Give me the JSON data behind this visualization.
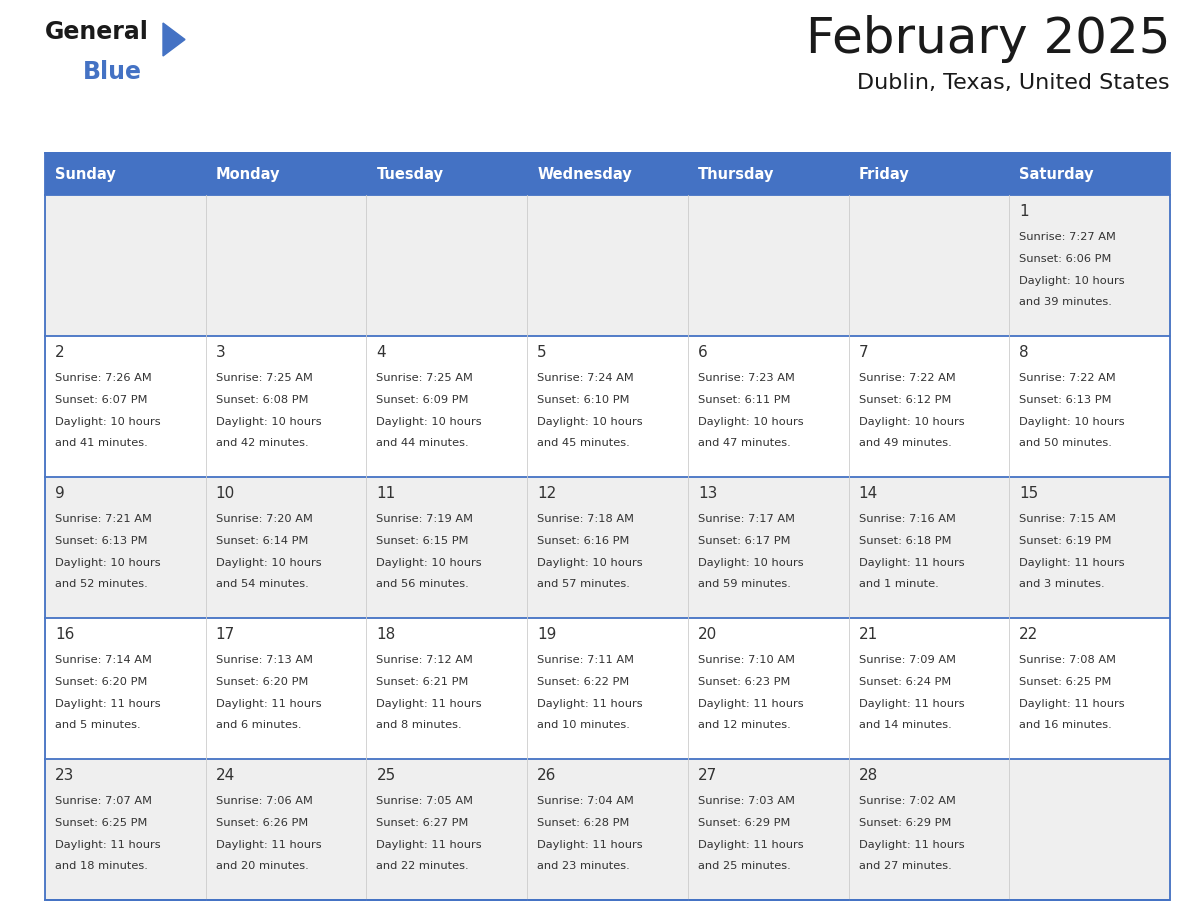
{
  "title": "February 2025",
  "subtitle": "Dublin, Texas, United States",
  "header_bg": "#4472C4",
  "header_text_color": "#FFFFFF",
  "day_names": [
    "Sunday",
    "Monday",
    "Tuesday",
    "Wednesday",
    "Thursday",
    "Friday",
    "Saturday"
  ],
  "row_bg_odd": "#EFEFEF",
  "row_bg_even": "#FFFFFF",
  "cell_text_color": "#333333",
  "border_color": "#4472C4",
  "separator_color": "#4472C4",
  "days": [
    {
      "date": 1,
      "col": 6,
      "row": 0,
      "sunrise": "7:27 AM",
      "sunset": "6:06 PM",
      "daylight_line1": "Daylight: 10 hours",
      "daylight_line2": "and 39 minutes."
    },
    {
      "date": 2,
      "col": 0,
      "row": 1,
      "sunrise": "7:26 AM",
      "sunset": "6:07 PM",
      "daylight_line1": "Daylight: 10 hours",
      "daylight_line2": "and 41 minutes."
    },
    {
      "date": 3,
      "col": 1,
      "row": 1,
      "sunrise": "7:25 AM",
      "sunset": "6:08 PM",
      "daylight_line1": "Daylight: 10 hours",
      "daylight_line2": "and 42 minutes."
    },
    {
      "date": 4,
      "col": 2,
      "row": 1,
      "sunrise": "7:25 AM",
      "sunset": "6:09 PM",
      "daylight_line1": "Daylight: 10 hours",
      "daylight_line2": "and 44 minutes."
    },
    {
      "date": 5,
      "col": 3,
      "row": 1,
      "sunrise": "7:24 AM",
      "sunset": "6:10 PM",
      "daylight_line1": "Daylight: 10 hours",
      "daylight_line2": "and 45 minutes."
    },
    {
      "date": 6,
      "col": 4,
      "row": 1,
      "sunrise": "7:23 AM",
      "sunset": "6:11 PM",
      "daylight_line1": "Daylight: 10 hours",
      "daylight_line2": "and 47 minutes."
    },
    {
      "date": 7,
      "col": 5,
      "row": 1,
      "sunrise": "7:22 AM",
      "sunset": "6:12 PM",
      "daylight_line1": "Daylight: 10 hours",
      "daylight_line2": "and 49 minutes."
    },
    {
      "date": 8,
      "col": 6,
      "row": 1,
      "sunrise": "7:22 AM",
      "sunset": "6:13 PM",
      "daylight_line1": "Daylight: 10 hours",
      "daylight_line2": "and 50 minutes."
    },
    {
      "date": 9,
      "col": 0,
      "row": 2,
      "sunrise": "7:21 AM",
      "sunset": "6:13 PM",
      "daylight_line1": "Daylight: 10 hours",
      "daylight_line2": "and 52 minutes."
    },
    {
      "date": 10,
      "col": 1,
      "row": 2,
      "sunrise": "7:20 AM",
      "sunset": "6:14 PM",
      "daylight_line1": "Daylight: 10 hours",
      "daylight_line2": "and 54 minutes."
    },
    {
      "date": 11,
      "col": 2,
      "row": 2,
      "sunrise": "7:19 AM",
      "sunset": "6:15 PM",
      "daylight_line1": "Daylight: 10 hours",
      "daylight_line2": "and 56 minutes."
    },
    {
      "date": 12,
      "col": 3,
      "row": 2,
      "sunrise": "7:18 AM",
      "sunset": "6:16 PM",
      "daylight_line1": "Daylight: 10 hours",
      "daylight_line2": "and 57 minutes."
    },
    {
      "date": 13,
      "col": 4,
      "row": 2,
      "sunrise": "7:17 AM",
      "sunset": "6:17 PM",
      "daylight_line1": "Daylight: 10 hours",
      "daylight_line2": "and 59 minutes."
    },
    {
      "date": 14,
      "col": 5,
      "row": 2,
      "sunrise": "7:16 AM",
      "sunset": "6:18 PM",
      "daylight_line1": "Daylight: 11 hours",
      "daylight_line2": "and 1 minute."
    },
    {
      "date": 15,
      "col": 6,
      "row": 2,
      "sunrise": "7:15 AM",
      "sunset": "6:19 PM",
      "daylight_line1": "Daylight: 11 hours",
      "daylight_line2": "and 3 minutes."
    },
    {
      "date": 16,
      "col": 0,
      "row": 3,
      "sunrise": "7:14 AM",
      "sunset": "6:20 PM",
      "daylight_line1": "Daylight: 11 hours",
      "daylight_line2": "and 5 minutes."
    },
    {
      "date": 17,
      "col": 1,
      "row": 3,
      "sunrise": "7:13 AM",
      "sunset": "6:20 PM",
      "daylight_line1": "Daylight: 11 hours",
      "daylight_line2": "and 6 minutes."
    },
    {
      "date": 18,
      "col": 2,
      "row": 3,
      "sunrise": "7:12 AM",
      "sunset": "6:21 PM",
      "daylight_line1": "Daylight: 11 hours",
      "daylight_line2": "and 8 minutes."
    },
    {
      "date": 19,
      "col": 3,
      "row": 3,
      "sunrise": "7:11 AM",
      "sunset": "6:22 PM",
      "daylight_line1": "Daylight: 11 hours",
      "daylight_line2": "and 10 minutes."
    },
    {
      "date": 20,
      "col": 4,
      "row": 3,
      "sunrise": "7:10 AM",
      "sunset": "6:23 PM",
      "daylight_line1": "Daylight: 11 hours",
      "daylight_line2": "and 12 minutes."
    },
    {
      "date": 21,
      "col": 5,
      "row": 3,
      "sunrise": "7:09 AM",
      "sunset": "6:24 PM",
      "daylight_line1": "Daylight: 11 hours",
      "daylight_line2": "and 14 minutes."
    },
    {
      "date": 22,
      "col": 6,
      "row": 3,
      "sunrise": "7:08 AM",
      "sunset": "6:25 PM",
      "daylight_line1": "Daylight: 11 hours",
      "daylight_line2": "and 16 minutes."
    },
    {
      "date": 23,
      "col": 0,
      "row": 4,
      "sunrise": "7:07 AM",
      "sunset": "6:25 PM",
      "daylight_line1": "Daylight: 11 hours",
      "daylight_line2": "and 18 minutes."
    },
    {
      "date": 24,
      "col": 1,
      "row": 4,
      "sunrise": "7:06 AM",
      "sunset": "6:26 PM",
      "daylight_line1": "Daylight: 11 hours",
      "daylight_line2": "and 20 minutes."
    },
    {
      "date": 25,
      "col": 2,
      "row": 4,
      "sunrise": "7:05 AM",
      "sunset": "6:27 PM",
      "daylight_line1": "Daylight: 11 hours",
      "daylight_line2": "and 22 minutes."
    },
    {
      "date": 26,
      "col": 3,
      "row": 4,
      "sunrise": "7:04 AM",
      "sunset": "6:28 PM",
      "daylight_line1": "Daylight: 11 hours",
      "daylight_line2": "and 23 minutes."
    },
    {
      "date": 27,
      "col": 4,
      "row": 4,
      "sunrise": "7:03 AM",
      "sunset": "6:29 PM",
      "daylight_line1": "Daylight: 11 hours",
      "daylight_line2": "and 25 minutes."
    },
    {
      "date": 28,
      "col": 5,
      "row": 4,
      "sunrise": "7:02 AM",
      "sunset": "6:29 PM",
      "daylight_line1": "Daylight: 11 hours",
      "daylight_line2": "and 27 minutes."
    }
  ],
  "num_rows": 5,
  "fig_width": 11.88,
  "fig_height": 9.18,
  "dpi": 100
}
